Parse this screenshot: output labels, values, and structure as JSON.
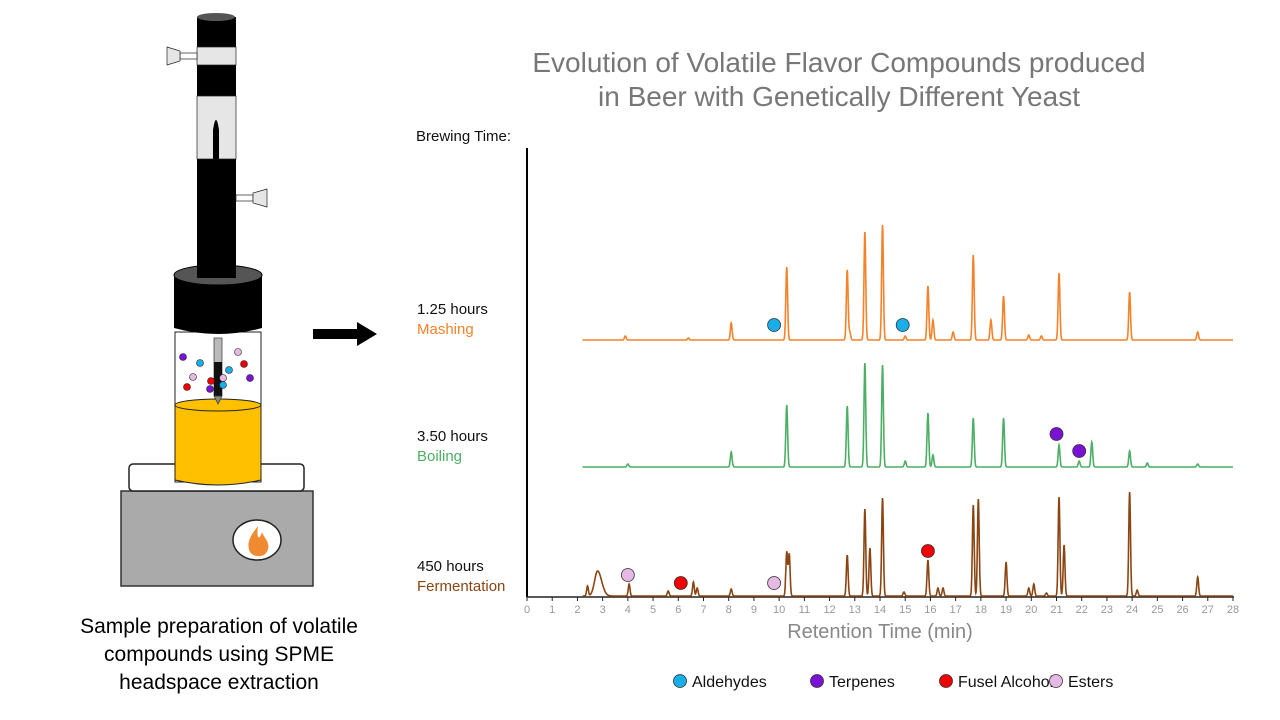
{
  "caption": [
    "Sample preparation of volatile",
    "compounds using SPME",
    "headspace extraction"
  ],
  "chart_data": {
    "type": "line",
    "title": [
      "Evolution of Volatile Flavor Compounds produced",
      "in Beer with Genetically Different Yeast"
    ],
    "ylabel": "Brewing Time:",
    "xlabel": "Retention Time (min)",
    "xlim": [
      0,
      28
    ],
    "xticks": [
      0,
      1,
      2,
      3,
      4,
      5,
      6,
      7,
      8,
      9,
      10,
      11,
      12,
      13,
      14,
      15,
      16,
      17,
      18,
      19,
      20,
      21,
      22,
      23,
      24,
      25,
      26,
      27,
      28
    ],
    "series": [
      {
        "name": "Mashing",
        "time_label": "1.25 hours",
        "color": "#f5822a",
        "start": 2.2,
        "peaks": [
          [
            3.9,
            4
          ],
          [
            6.4,
            2
          ],
          [
            8.1,
            17
          ],
          [
            10.3,
            73
          ],
          [
            12.7,
            70
          ],
          [
            12.8,
            8
          ],
          [
            13.4,
            108
          ],
          [
            14.1,
            115
          ],
          [
            15.0,
            4
          ],
          [
            15.9,
            54
          ],
          [
            16.1,
            20
          ],
          [
            16.9,
            8
          ],
          [
            17.7,
            85
          ],
          [
            18.4,
            20
          ],
          [
            18.9,
            44
          ],
          [
            19.9,
            5
          ],
          [
            20.4,
            4
          ],
          [
            21.1,
            67
          ],
          [
            23.9,
            48
          ],
          [
            26.6,
            8
          ]
        ],
        "markers": [
          {
            "class": "Aldehydes",
            "t": 9.8,
            "level": 15
          },
          {
            "class": "Aldehydes",
            "t": 14.9,
            "level": 15
          }
        ]
      },
      {
        "name": "Boiling",
        "time_label": "3.50 hours",
        "color": "#4caf64",
        "start": 2.2,
        "peaks": [
          [
            4.0,
            3
          ],
          [
            8.1,
            15
          ],
          [
            10.3,
            62
          ],
          [
            12.7,
            61
          ],
          [
            13.4,
            104
          ],
          [
            14.1,
            102
          ],
          [
            15.0,
            6
          ],
          [
            15.9,
            54
          ],
          [
            16.1,
            12
          ],
          [
            17.7,
            49
          ],
          [
            18.9,
            49
          ],
          [
            21.1,
            22
          ],
          [
            21.9,
            6
          ],
          [
            22.4,
            25
          ],
          [
            23.9,
            16
          ],
          [
            24.6,
            4
          ],
          [
            26.6,
            3
          ]
        ],
        "markers": [
          {
            "class": "Terpenes",
            "t": 21.0,
            "level": 33
          },
          {
            "class": "Terpenes",
            "t": 21.9,
            "level": 16
          }
        ]
      },
      {
        "name": "Fermentation",
        "time_label": "450 hours",
        "color": "#8b4513",
        "start": 2.2,
        "peaks": [
          [
            2.4,
            10
          ],
          [
            4.05,
            12
          ],
          [
            5.6,
            5
          ],
          [
            6.6,
            14
          ],
          [
            6.75,
            8
          ],
          [
            8.1,
            7
          ],
          [
            10.3,
            44
          ],
          [
            10.4,
            42
          ],
          [
            12.7,
            41
          ],
          [
            13.4,
            87
          ],
          [
            13.6,
            48
          ],
          [
            14.1,
            98
          ],
          [
            14.95,
            4
          ],
          [
            15.9,
            36
          ],
          [
            16.3,
            8
          ],
          [
            16.5,
            8
          ],
          [
            17.7,
            91
          ],
          [
            17.9,
            97
          ],
          [
            19.0,
            34
          ],
          [
            19.9,
            8
          ],
          [
            20.1,
            12
          ],
          [
            20.6,
            3
          ],
          [
            21.1,
            99
          ],
          [
            21.3,
            51
          ],
          [
            23.9,
            104
          ],
          [
            24.2,
            6
          ],
          [
            26.6,
            19
          ]
        ],
        "broad_peaks": [
          [
            2.8,
            25
          ]
        ],
        "markers": [
          {
            "class": "Esters",
            "t": 4.0,
            "level": 21
          },
          {
            "class": "Fusel Alcohol",
            "t": 6.1,
            "level": 13
          },
          {
            "class": "Esters",
            "t": 9.8,
            "level": 13
          },
          {
            "class": "Fusel Alcohol",
            "t": 15.9,
            "level": 45
          }
        ]
      }
    ],
    "legend": [
      {
        "name": "Aldehydes",
        "color": "#1aaee8"
      },
      {
        "name": "Terpenes",
        "color": "#7a12d4"
      },
      {
        "name": "Fusel Alcohol",
        "color": "#f20000"
      },
      {
        "name": "Esters",
        "color": "#e6b8e6"
      }
    ],
    "legend_position": "bottom"
  }
}
